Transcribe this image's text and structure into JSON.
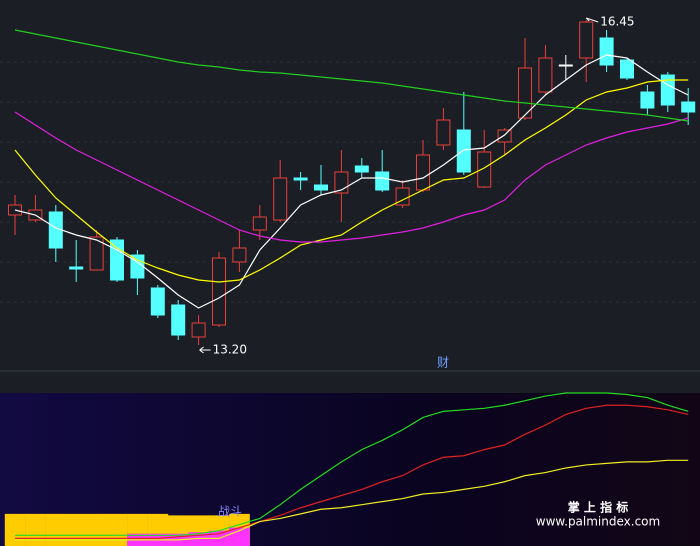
{
  "chart_data": [
    {
      "type": "candlestick",
      "ylim": [
        12.95,
        16.65
      ],
      "candles": {
        "open": [
          14.5,
          14.45,
          14.53,
          13.98,
          13.95,
          14.25,
          14.1,
          13.77,
          13.6,
          13.28,
          13.4,
          14.03,
          14.35,
          14.45,
          14.87,
          14.8,
          14.72,
          14.99,
          14.93,
          14.6,
          14.75,
          15.2,
          15.35,
          14.78,
          15.23,
          15.47,
          15.73,
          16.0,
          16.07,
          16.27,
          16.05,
          15.73,
          15.9,
          15.63
        ],
        "high": [
          14.7,
          14.7,
          14.6,
          14.25,
          14.35,
          14.28,
          14.15,
          13.8,
          13.65,
          13.5,
          14.13,
          14.35,
          14.6,
          15.05,
          14.93,
          15.0,
          15.15,
          15.07,
          15.15,
          14.85,
          15.25,
          15.57,
          15.73,
          15.35,
          15.37,
          16.27,
          16.2,
          16.1,
          16.45,
          16.35,
          16.07,
          15.8,
          15.93,
          15.77
        ],
        "low": [
          14.3,
          14.43,
          14.03,
          13.83,
          13.95,
          13.83,
          13.7,
          13.47,
          13.25,
          13.2,
          13.38,
          13.93,
          14.25,
          14.43,
          14.75,
          14.7,
          14.43,
          14.87,
          14.73,
          14.57,
          14.73,
          15.15,
          14.9,
          14.77,
          15.1,
          15.45,
          15.7,
          15.85,
          15.83,
          15.93,
          15.85,
          15.5,
          15.53,
          15.4
        ],
        "close": [
          14.6,
          14.55,
          14.17,
          13.96,
          14.28,
          13.85,
          13.87,
          13.5,
          13.3,
          13.42,
          14.07,
          14.17,
          14.48,
          14.87,
          14.85,
          14.75,
          14.93,
          14.93,
          14.75,
          14.77,
          15.1,
          15.45,
          14.93,
          15.13,
          15.35,
          15.97,
          16.07,
          16.0,
          16.43,
          16.0,
          15.87,
          15.57,
          15.6,
          15.53
        ],
        "up_color": "#e8403a",
        "down_color": "#54ffff",
        "flat_color": "#ffffff"
      },
      "series": [
        {
          "color": "#ffffff",
          "values": [
            14.55,
            14.5,
            14.37,
            14.3,
            14.25,
            14.15,
            14.03,
            13.87,
            13.7,
            13.57,
            13.67,
            13.8,
            14.15,
            14.37,
            14.6,
            14.7,
            14.75,
            14.87,
            14.87,
            14.83,
            14.87,
            15.0,
            15.15,
            15.17,
            15.3,
            15.5,
            15.7,
            15.85,
            16.0,
            16.1,
            16.07,
            15.93,
            15.8,
            15.7
          ]
        },
        {
          "color": "#ffff00",
          "values": [
            15.15,
            14.9,
            14.67,
            14.5,
            14.33,
            14.17,
            14.05,
            13.97,
            13.9,
            13.85,
            13.83,
            13.85,
            13.95,
            14.07,
            14.2,
            14.25,
            14.3,
            14.43,
            14.55,
            14.65,
            14.75,
            14.85,
            14.87,
            14.97,
            15.1,
            15.25,
            15.37,
            15.5,
            15.65,
            15.73,
            15.77,
            15.83,
            15.85,
            15.85
          ]
        },
        {
          "color": "#e020e0",
          "values": [
            15.53,
            15.4,
            15.27,
            15.15,
            15.05,
            14.95,
            14.85,
            14.75,
            14.65,
            14.55,
            14.45,
            14.35,
            14.29,
            14.25,
            14.23,
            14.23,
            14.25,
            14.27,
            14.3,
            14.33,
            14.37,
            14.43,
            14.5,
            14.55,
            14.65,
            14.85,
            15.0,
            15.1,
            15.2,
            15.27,
            15.33,
            15.37,
            15.41,
            15.47
          ]
        },
        {
          "color": "#22cc22",
          "values": [
            16.35,
            16.31,
            16.27,
            16.23,
            16.19,
            16.15,
            16.11,
            16.07,
            16.03,
            16.0,
            15.98,
            15.95,
            15.93,
            15.92,
            15.9,
            15.88,
            15.86,
            15.84,
            15.82,
            15.79,
            15.76,
            15.73,
            15.7,
            15.67,
            15.64,
            15.62,
            15.6,
            15.58,
            15.56,
            15.54,
            15.52,
            15.5,
            15.47,
            15.44
          ]
        }
      ],
      "annotations": [
        "16.45",
        "13.20",
        "财"
      ]
    },
    {
      "type": "indicator",
      "ylim": [
        0,
        100
      ],
      "series": [
        {
          "color": "#22dd22",
          "values": [
            7,
            7,
            7,
            7,
            7,
            7,
            7,
            7,
            7,
            8,
            10,
            14,
            18,
            27,
            37,
            46,
            55,
            63,
            69,
            76,
            84,
            88,
            89,
            90,
            92,
            95,
            98,
            100,
            100,
            100,
            99,
            97,
            92,
            88
          ]
        },
        {
          "color": "#dd2222",
          "values": [
            5,
            5,
            5,
            5,
            5,
            5,
            5,
            5,
            6,
            7,
            8,
            12,
            16,
            20,
            25,
            29,
            33,
            37,
            42,
            46,
            53,
            58,
            59,
            63,
            66,
            73,
            79,
            86,
            90,
            92,
            92,
            91,
            89,
            86
          ]
        },
        {
          "color": "#eeee22",
          "values": [
            4,
            4,
            4,
            4,
            4,
            4,
            4,
            4,
            4,
            5,
            5,
            10,
            16,
            18,
            21,
            24,
            25,
            27,
            29,
            31,
            34,
            35,
            37,
            39,
            42,
            46,
            48,
            51,
            53,
            54,
            55,
            55,
            56,
            56
          ]
        }
      ],
      "bars": [
        {
          "color": "#ffcc00",
          "values": [
            21,
            21,
            21,
            21,
            21,
            21,
            21,
            21,
            20,
            20,
            20,
            21,
            null,
            null,
            null,
            null,
            null,
            null,
            null,
            null,
            null,
            null,
            null,
            null,
            null,
            null,
            null,
            null,
            null,
            null,
            null,
            null,
            null,
            null
          ]
        },
        {
          "color": "#ff33ff",
          "values": [
            null,
            null,
            null,
            null,
            null,
            null,
            8,
            8,
            8,
            9,
            10,
            12,
            null,
            null,
            null,
            null,
            null,
            null,
            null,
            null,
            null,
            null,
            null,
            null,
            null,
            null,
            null,
            null,
            null,
            null,
            null,
            null,
            null,
            null
          ]
        }
      ],
      "annotations": [
        "战斗"
      ],
      "watermark": [
        "掌 上 指 标",
        "www.palmindex.com"
      ]
    }
  ]
}
